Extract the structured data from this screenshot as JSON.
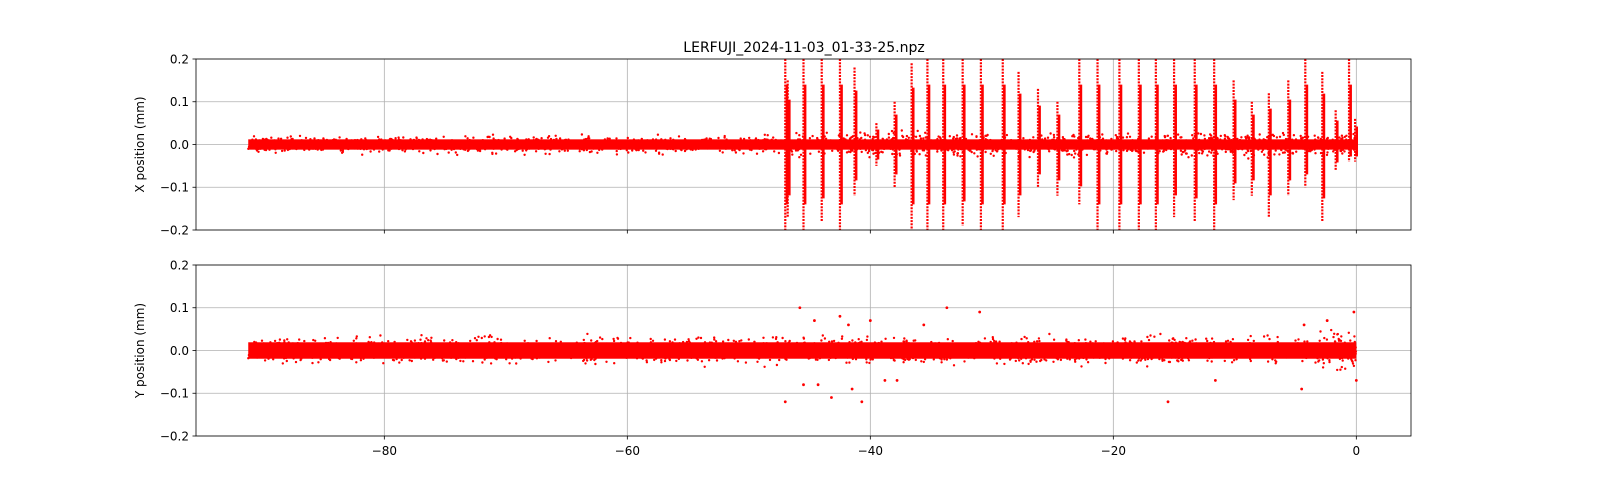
{
  "chart_data": {
    "type": "scatter",
    "title": "LERFUJI_2024-11-03_01-33-25.npz",
    "marker_color": "#ff0000",
    "grid": true,
    "shared_x": true,
    "xlim": [
      -95.5,
      4.5
    ],
    "x_ticks": [
      -80,
      -60,
      -40,
      -20,
      0
    ],
    "x_tick_labels": [
      "−80",
      "−60",
      "−40",
      "−20",
      "0"
    ],
    "x_data_range": [
      -91.2,
      0
    ],
    "subplots": [
      {
        "id": "x",
        "ylabel": "X position (mm)",
        "ylim": [
          -0.2,
          0.2
        ],
        "y_ticks": [
          -0.2,
          -0.1,
          0.0,
          0.1,
          0.2
        ],
        "y_tick_labels": [
          "−0.2",
          "−0.1",
          "0.0",
          "0.1",
          "0.2"
        ],
        "baseline_noise_band": [
          -0.022,
          0.022
        ],
        "oscillation_start_x": -47.2,
        "spikes": [
          {
            "x": -47.0,
            "min": -0.2,
            "max": 0.2
          },
          {
            "x": -46.8,
            "min": -0.17,
            "max": 0.15
          },
          {
            "x": -45.5,
            "min": -0.2,
            "max": 0.2
          },
          {
            "x": -44.0,
            "min": -0.18,
            "max": 0.2
          },
          {
            "x": -42.5,
            "min": -0.2,
            "max": 0.2
          },
          {
            "x": -41.3,
            "min": -0.12,
            "max": 0.18
          },
          {
            "x": -39.5,
            "min": -0.05,
            "max": 0.05
          },
          {
            "x": -38.0,
            "min": -0.1,
            "max": 0.1
          },
          {
            "x": -36.6,
            "min": -0.2,
            "max": 0.19
          },
          {
            "x": -35.3,
            "min": -0.2,
            "max": 0.2
          },
          {
            "x": -34.0,
            "min": -0.2,
            "max": 0.2
          },
          {
            "x": -32.4,
            "min": -0.19,
            "max": 0.2
          },
          {
            "x": -30.9,
            "min": -0.2,
            "max": 0.2
          },
          {
            "x": -29.1,
            "min": -0.2,
            "max": 0.2
          },
          {
            "x": -27.8,
            "min": -0.17,
            "max": 0.17
          },
          {
            "x": -26.2,
            "min": -0.1,
            "max": 0.13
          },
          {
            "x": -24.6,
            "min": -0.12,
            "max": 0.1
          },
          {
            "x": -22.8,
            "min": -0.14,
            "max": 0.2
          },
          {
            "x": -21.3,
            "min": -0.2,
            "max": 0.2
          },
          {
            "x": -19.5,
            "min": -0.2,
            "max": 0.2
          },
          {
            "x": -17.9,
            "min": -0.2,
            "max": 0.2
          },
          {
            "x": -16.5,
            "min": -0.2,
            "max": 0.2
          },
          {
            "x": -15.0,
            "min": -0.17,
            "max": 0.2
          },
          {
            "x": -13.3,
            "min": -0.18,
            "max": 0.2
          },
          {
            "x": -11.7,
            "min": -0.2,
            "max": 0.2
          },
          {
            "x": -10.1,
            "min": -0.13,
            "max": 0.15
          },
          {
            "x": -8.6,
            "min": -0.12,
            "max": 0.1
          },
          {
            "x": -7.2,
            "min": -0.17,
            "max": 0.12
          },
          {
            "x": -5.6,
            "min": -0.12,
            "max": 0.15
          },
          {
            "x": -4.2,
            "min": -0.1,
            "max": 0.2
          },
          {
            "x": -2.8,
            "min": -0.18,
            "max": 0.17
          },
          {
            "x": -1.7,
            "min": -0.06,
            "max": 0.08
          },
          {
            "x": -0.6,
            "min": -0.04,
            "max": 0.2
          },
          {
            "x": -0.1,
            "min": -0.04,
            "max": 0.06
          }
        ]
      },
      {
        "id": "y",
        "ylabel": "Y position (mm)",
        "ylim": [
          -0.2,
          0.2
        ],
        "y_ticks": [
          -0.2,
          -0.1,
          0.0,
          0.1,
          0.2
        ],
        "y_tick_labels": [
          "−0.2",
          "−0.1",
          "0.0",
          "0.1",
          "0.2"
        ],
        "baseline_noise_band": [
          -0.035,
          0.035
        ],
        "outliers": [
          {
            "x": -47.0,
            "y": -0.12
          },
          {
            "x": -45.8,
            "y": 0.1
          },
          {
            "x": -45.5,
            "y": -0.08
          },
          {
            "x": -44.6,
            "y": 0.07
          },
          {
            "x": -44.3,
            "y": -0.08
          },
          {
            "x": -43.2,
            "y": -0.11
          },
          {
            "x": -42.5,
            "y": 0.08
          },
          {
            "x": -41.8,
            "y": 0.06
          },
          {
            "x": -41.5,
            "y": -0.09
          },
          {
            "x": -40.7,
            "y": -0.12
          },
          {
            "x": -40.0,
            "y": 0.07
          },
          {
            "x": -38.8,
            "y": -0.07
          },
          {
            "x": -37.8,
            "y": -0.07
          },
          {
            "x": -35.6,
            "y": 0.06
          },
          {
            "x": -33.7,
            "y": 0.1
          },
          {
            "x": -31.0,
            "y": 0.09
          },
          {
            "x": -15.5,
            "y": -0.12
          },
          {
            "x": -11.6,
            "y": -0.07
          },
          {
            "x": -4.5,
            "y": -0.09
          },
          {
            "x": -4.3,
            "y": 0.06
          },
          {
            "x": -2.4,
            "y": 0.07
          },
          {
            "x": -0.2,
            "y": 0.09
          },
          {
            "x": 0.0,
            "y": -0.07
          }
        ]
      }
    ]
  }
}
